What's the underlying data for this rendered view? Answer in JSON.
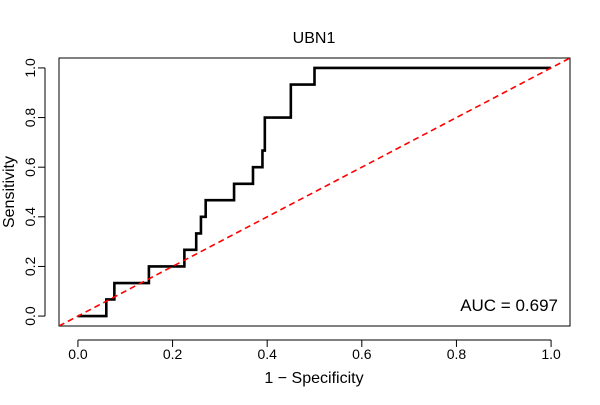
{
  "chart_data": {
    "type": "line",
    "title": "UBN1",
    "xlabel": "1 − Specificity",
    "ylabel": "Sensitivity",
    "xlim": [
      -0.04,
      1.04
    ],
    "ylim": [
      -0.04,
      1.04
    ],
    "x_ticks": [
      0.0,
      0.2,
      0.4,
      0.6,
      0.8,
      1.0
    ],
    "y_ticks": [
      0.0,
      0.2,
      0.4,
      0.6,
      0.8,
      1.0
    ],
    "x_tick_labels": [
      "0.0",
      "0.2",
      "0.4",
      "0.6",
      "0.8",
      "1.0"
    ],
    "y_tick_labels": [
      "0.0",
      "0.2",
      "0.4",
      "0.6",
      "0.8",
      "1.0"
    ],
    "annotation": "AUC = 0.697",
    "grid": false,
    "series": [
      {
        "style": "step",
        "color": "#000000",
        "points": [
          [
            0.0,
            0.0
          ],
          [
            0.06,
            0.0
          ],
          [
            0.06,
            0.067
          ],
          [
            0.077,
            0.067
          ],
          [
            0.077,
            0.133
          ],
          [
            0.15,
            0.133
          ],
          [
            0.15,
            0.2
          ],
          [
            0.225,
            0.2
          ],
          [
            0.225,
            0.267
          ],
          [
            0.25,
            0.267
          ],
          [
            0.25,
            0.333
          ],
          [
            0.26,
            0.333
          ],
          [
            0.26,
            0.4
          ],
          [
            0.27,
            0.4
          ],
          [
            0.27,
            0.467
          ],
          [
            0.33,
            0.467
          ],
          [
            0.33,
            0.533
          ],
          [
            0.37,
            0.533
          ],
          [
            0.37,
            0.6
          ],
          [
            0.39,
            0.6
          ],
          [
            0.39,
            0.667
          ],
          [
            0.395,
            0.667
          ],
          [
            0.395,
            0.8
          ],
          [
            0.45,
            0.8
          ],
          [
            0.45,
            0.933
          ],
          [
            0.5,
            0.933
          ],
          [
            0.5,
            1.0
          ],
          [
            1.0,
            1.0
          ]
        ]
      },
      {
        "style": "dashed",
        "color": "#ff0000",
        "points": [
          [
            -0.04,
            -0.04
          ],
          [
            1.04,
            1.04
          ]
        ]
      }
    ]
  }
}
